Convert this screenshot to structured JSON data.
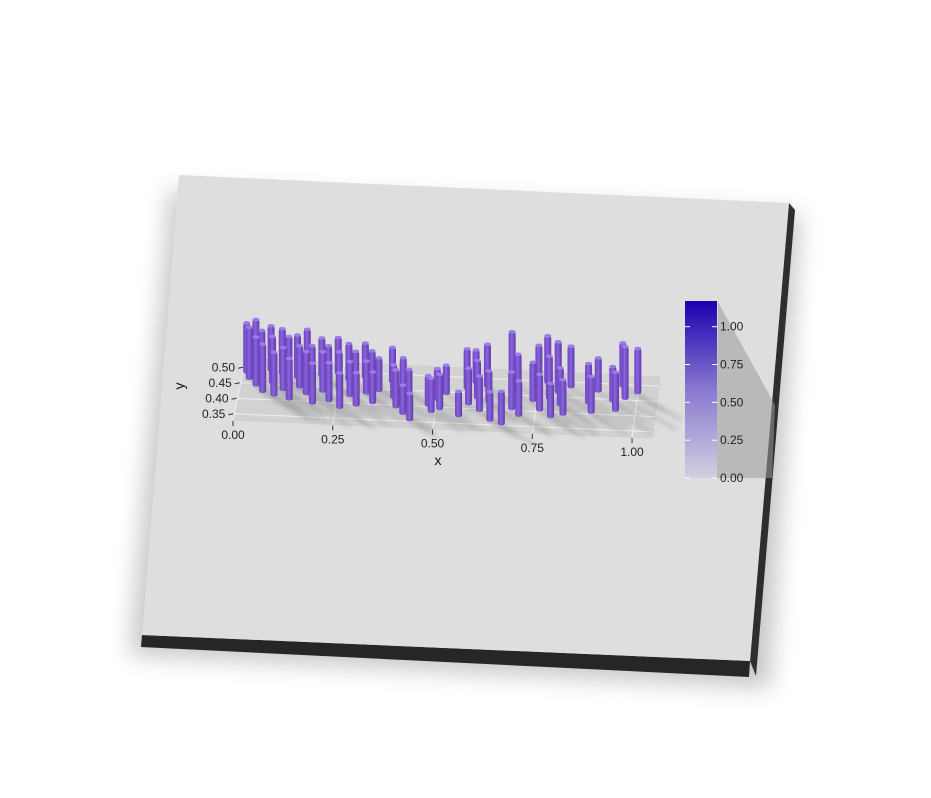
{
  "chart_data": {
    "type": "bar",
    "render_style": "rayshader-3d-extruded-scatter",
    "title": "",
    "xlabel": "x",
    "ylabel": "y",
    "x_ticks": [
      "0.00",
      "0.25",
      "0.50",
      "0.75",
      "1.00"
    ],
    "y_ticks": [
      "0.50",
      "0.45",
      "0.40",
      "0.35"
    ],
    "xlim": [
      0.0,
      1.05
    ],
    "ylim": [
      0.33,
      0.53
    ],
    "grid": true,
    "legend": {
      "position": "right",
      "type": "colorbar",
      "ticks": [
        "1.00",
        "0.75",
        "0.50",
        "0.25",
        "0.00"
      ],
      "color_low": "#c8c8dc",
      "color_high": "#1a00b0"
    },
    "colors": {
      "bar": "#7b55cc",
      "bar_top": "#9c7ce6",
      "bar_side": "#5d3aa8",
      "panel": "#dedede",
      "panel_edge": "#262626"
    },
    "points": [
      {
        "x": 0.01,
        "y": 0.48,
        "z": 0.82
      },
      {
        "x": 0.02,
        "y": 0.46,
        "z": 0.85
      },
      {
        "x": 0.03,
        "y": 0.5,
        "z": 0.78
      },
      {
        "x": 0.04,
        "y": 0.44,
        "z": 0.8
      },
      {
        "x": 0.05,
        "y": 0.47,
        "z": 0.76
      },
      {
        "x": 0.06,
        "y": 0.42,
        "z": 0.79
      },
      {
        "x": 0.07,
        "y": 0.49,
        "z": 0.74
      },
      {
        "x": 0.08,
        "y": 0.45,
        "z": 0.77
      },
      {
        "x": 0.09,
        "y": 0.41,
        "z": 0.72
      },
      {
        "x": 0.1,
        "y": 0.48,
        "z": 0.75
      },
      {
        "x": 0.11,
        "y": 0.43,
        "z": 0.7
      },
      {
        "x": 0.12,
        "y": 0.46,
        "z": 0.73
      },
      {
        "x": 0.13,
        "y": 0.4,
        "z": 0.68
      },
      {
        "x": 0.14,
        "y": 0.47,
        "z": 0.71
      },
      {
        "x": 0.15,
        "y": 0.44,
        "z": 0.69
      },
      {
        "x": 0.16,
        "y": 0.5,
        "z": 0.66
      },
      {
        "x": 0.17,
        "y": 0.42,
        "z": 0.7
      },
      {
        "x": 0.18,
        "y": 0.45,
        "z": 0.65
      },
      {
        "x": 0.19,
        "y": 0.39,
        "z": 0.67
      },
      {
        "x": 0.2,
        "y": 0.48,
        "z": 0.63
      },
      {
        "x": 0.21,
        "y": 0.43,
        "z": 0.66
      },
      {
        "x": 0.22,
        "y": 0.46,
        "z": 0.61
      },
      {
        "x": 0.23,
        "y": 0.4,
        "z": 0.64
      },
      {
        "x": 0.24,
        "y": 0.49,
        "z": 0.6
      },
      {
        "x": 0.25,
        "y": 0.44,
        "z": 0.62
      },
      {
        "x": 0.26,
        "y": 0.38,
        "z": 0.58
      },
      {
        "x": 0.27,
        "y": 0.47,
        "z": 0.61
      },
      {
        "x": 0.28,
        "y": 0.42,
        "z": 0.57
      },
      {
        "x": 0.29,
        "y": 0.45,
        "z": 0.59
      },
      {
        "x": 0.3,
        "y": 0.39,
        "z": 0.55
      },
      {
        "x": 0.31,
        "y": 0.48,
        "z": 0.58
      },
      {
        "x": 0.32,
        "y": 0.43,
        "z": 0.54
      },
      {
        "x": 0.33,
        "y": 0.46,
        "z": 0.56
      },
      {
        "x": 0.34,
        "y": 0.4,
        "z": 0.52
      },
      {
        "x": 0.35,
        "y": 0.44,
        "z": 0.55
      },
      {
        "x": 0.38,
        "y": 0.47,
        "z": 0.58
      },
      {
        "x": 0.39,
        "y": 0.42,
        "z": 0.55
      },
      {
        "x": 0.4,
        "y": 0.39,
        "z": 0.62
      },
      {
        "x": 0.41,
        "y": 0.45,
        "z": 0.52
      },
      {
        "x": 0.42,
        "y": 0.37,
        "z": 0.48
      },
      {
        "x": 0.43,
        "y": 0.41,
        "z": 0.54
      },
      {
        "x": 0.44,
        "y": 0.35,
        "z": 0.45
      },
      {
        "x": 0.48,
        "y": 0.4,
        "z": 0.5
      },
      {
        "x": 0.49,
        "y": 0.38,
        "z": 0.56
      },
      {
        "x": 0.5,
        "y": 0.42,
        "z": 0.52
      },
      {
        "x": 0.51,
        "y": 0.39,
        "z": 0.58
      },
      {
        "x": 0.52,
        "y": 0.44,
        "z": 0.48
      },
      {
        "x": 0.56,
        "y": 0.37,
        "z": 0.42
      },
      {
        "x": 0.57,
        "y": 0.46,
        "z": 0.66
      },
      {
        "x": 0.58,
        "y": 0.41,
        "z": 0.6
      },
      {
        "x": 0.59,
        "y": 0.48,
        "z": 0.55
      },
      {
        "x": 0.6,
        "y": 0.43,
        "z": 0.63
      },
      {
        "x": 0.61,
        "y": 0.39,
        "z": 0.58
      },
      {
        "x": 0.62,
        "y": 0.47,
        "z": 0.7
      },
      {
        "x": 0.63,
        "y": 0.42,
        "z": 0.52
      },
      {
        "x": 0.64,
        "y": 0.36,
        "z": 0.48
      },
      {
        "x": 0.67,
        "y": 0.35,
        "z": 0.55
      },
      {
        "x": 0.68,
        "y": 0.49,
        "z": 0.82
      },
      {
        "x": 0.69,
        "y": 0.4,
        "z": 0.62
      },
      {
        "x": 0.7,
        "y": 0.45,
        "z": 0.66
      },
      {
        "x": 0.71,
        "y": 0.38,
        "z": 0.58
      },
      {
        "x": 0.74,
        "y": 0.43,
        "z": 0.64
      },
      {
        "x": 0.75,
        "y": 0.47,
        "z": 0.72
      },
      {
        "x": 0.76,
        "y": 0.4,
        "z": 0.6
      },
      {
        "x": 0.77,
        "y": 0.49,
        "z": 0.78
      },
      {
        "x": 0.78,
        "y": 0.44,
        "z": 0.7
      },
      {
        "x": 0.79,
        "y": 0.38,
        "z": 0.56
      },
      {
        "x": 0.8,
        "y": 0.46,
        "z": 0.84
      },
      {
        "x": 0.81,
        "y": 0.42,
        "z": 0.62
      },
      {
        "x": 0.82,
        "y": 0.39,
        "z": 0.58
      },
      {
        "x": 0.83,
        "y": 0.48,
        "z": 0.68
      },
      {
        "x": 0.88,
        "y": 0.43,
        "z": 0.66
      },
      {
        "x": 0.89,
        "y": 0.4,
        "z": 0.6
      },
      {
        "x": 0.9,
        "y": 0.47,
        "z": 0.56
      },
      {
        "x": 0.94,
        "y": 0.44,
        "z": 0.58
      },
      {
        "x": 0.95,
        "y": 0.41,
        "z": 0.64
      },
      {
        "x": 0.96,
        "y": 0.49,
        "z": 0.72
      },
      {
        "x": 0.97,
        "y": 0.45,
        "z": 0.86
      },
      {
        "x": 1.0,
        "y": 0.47,
        "z": 0.74
      }
    ]
  }
}
